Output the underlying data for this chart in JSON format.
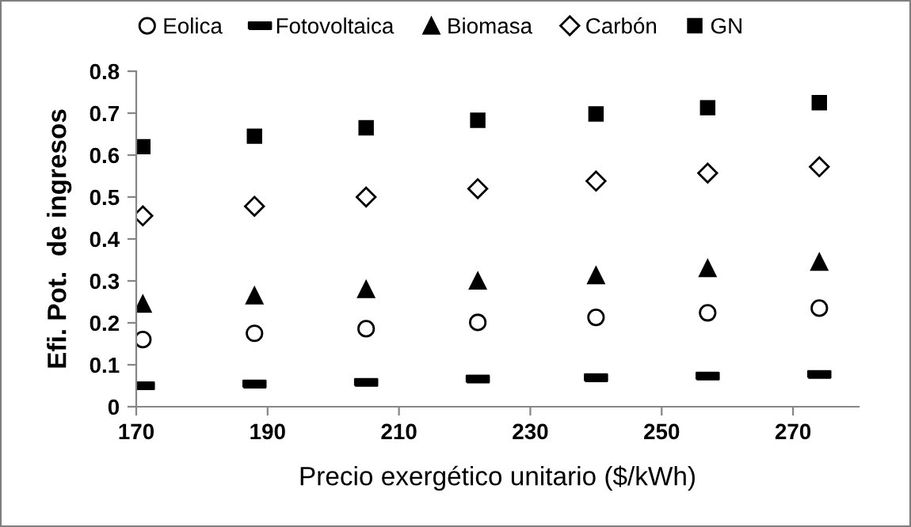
{
  "chart_data": {
    "type": "scatter",
    "xlabel": "Precio exergético unitario ($/kWh)",
    "ylabel": "Efi. Pot.  de ingresos",
    "x": [
      171,
      188,
      205,
      222,
      240,
      257,
      274
    ],
    "series": [
      {
        "name": "Eolica",
        "color": "#000000",
        "marker": "circle",
        "values": [
          0.16,
          0.175,
          0.186,
          0.201,
          0.213,
          0.224,
          0.235
        ]
      },
      {
        "name": "Fotovoltaica",
        "color": "#000000",
        "values": [
          0.05,
          0.054,
          0.058,
          0.066,
          0.069,
          0.073,
          0.077
        ]
      },
      {
        "name": "Biomasa",
        "color": "#000000",
        "marker": "triangle",
        "values": [
          0.245,
          0.265,
          0.28,
          0.3,
          0.313,
          0.33,
          0.345
        ]
      },
      {
        "name": "Carbón",
        "color": "#000000",
        "marker": "diamond",
        "values": [
          0.455,
          0.478,
          0.5,
          0.52,
          0.538,
          0.557,
          0.572
        ]
      },
      {
        "name": "GN",
        "color": "#000000",
        "marker": "square",
        "values": [
          0.62,
          0.645,
          0.665,
          0.683,
          0.698,
          0.713,
          0.725
        ]
      }
    ],
    "xlim": [
      170,
      280
    ],
    "xticks": [
      170,
      190,
      210,
      230,
      250,
      270
    ],
    "ylim": [
      0,
      0.8
    ],
    "yticks": [
      0,
      0.1,
      0.2,
      0.3,
      0.4,
      0.5,
      0.6,
      0.7,
      0.8
    ],
    "grid": false,
    "legend": "top"
  }
}
